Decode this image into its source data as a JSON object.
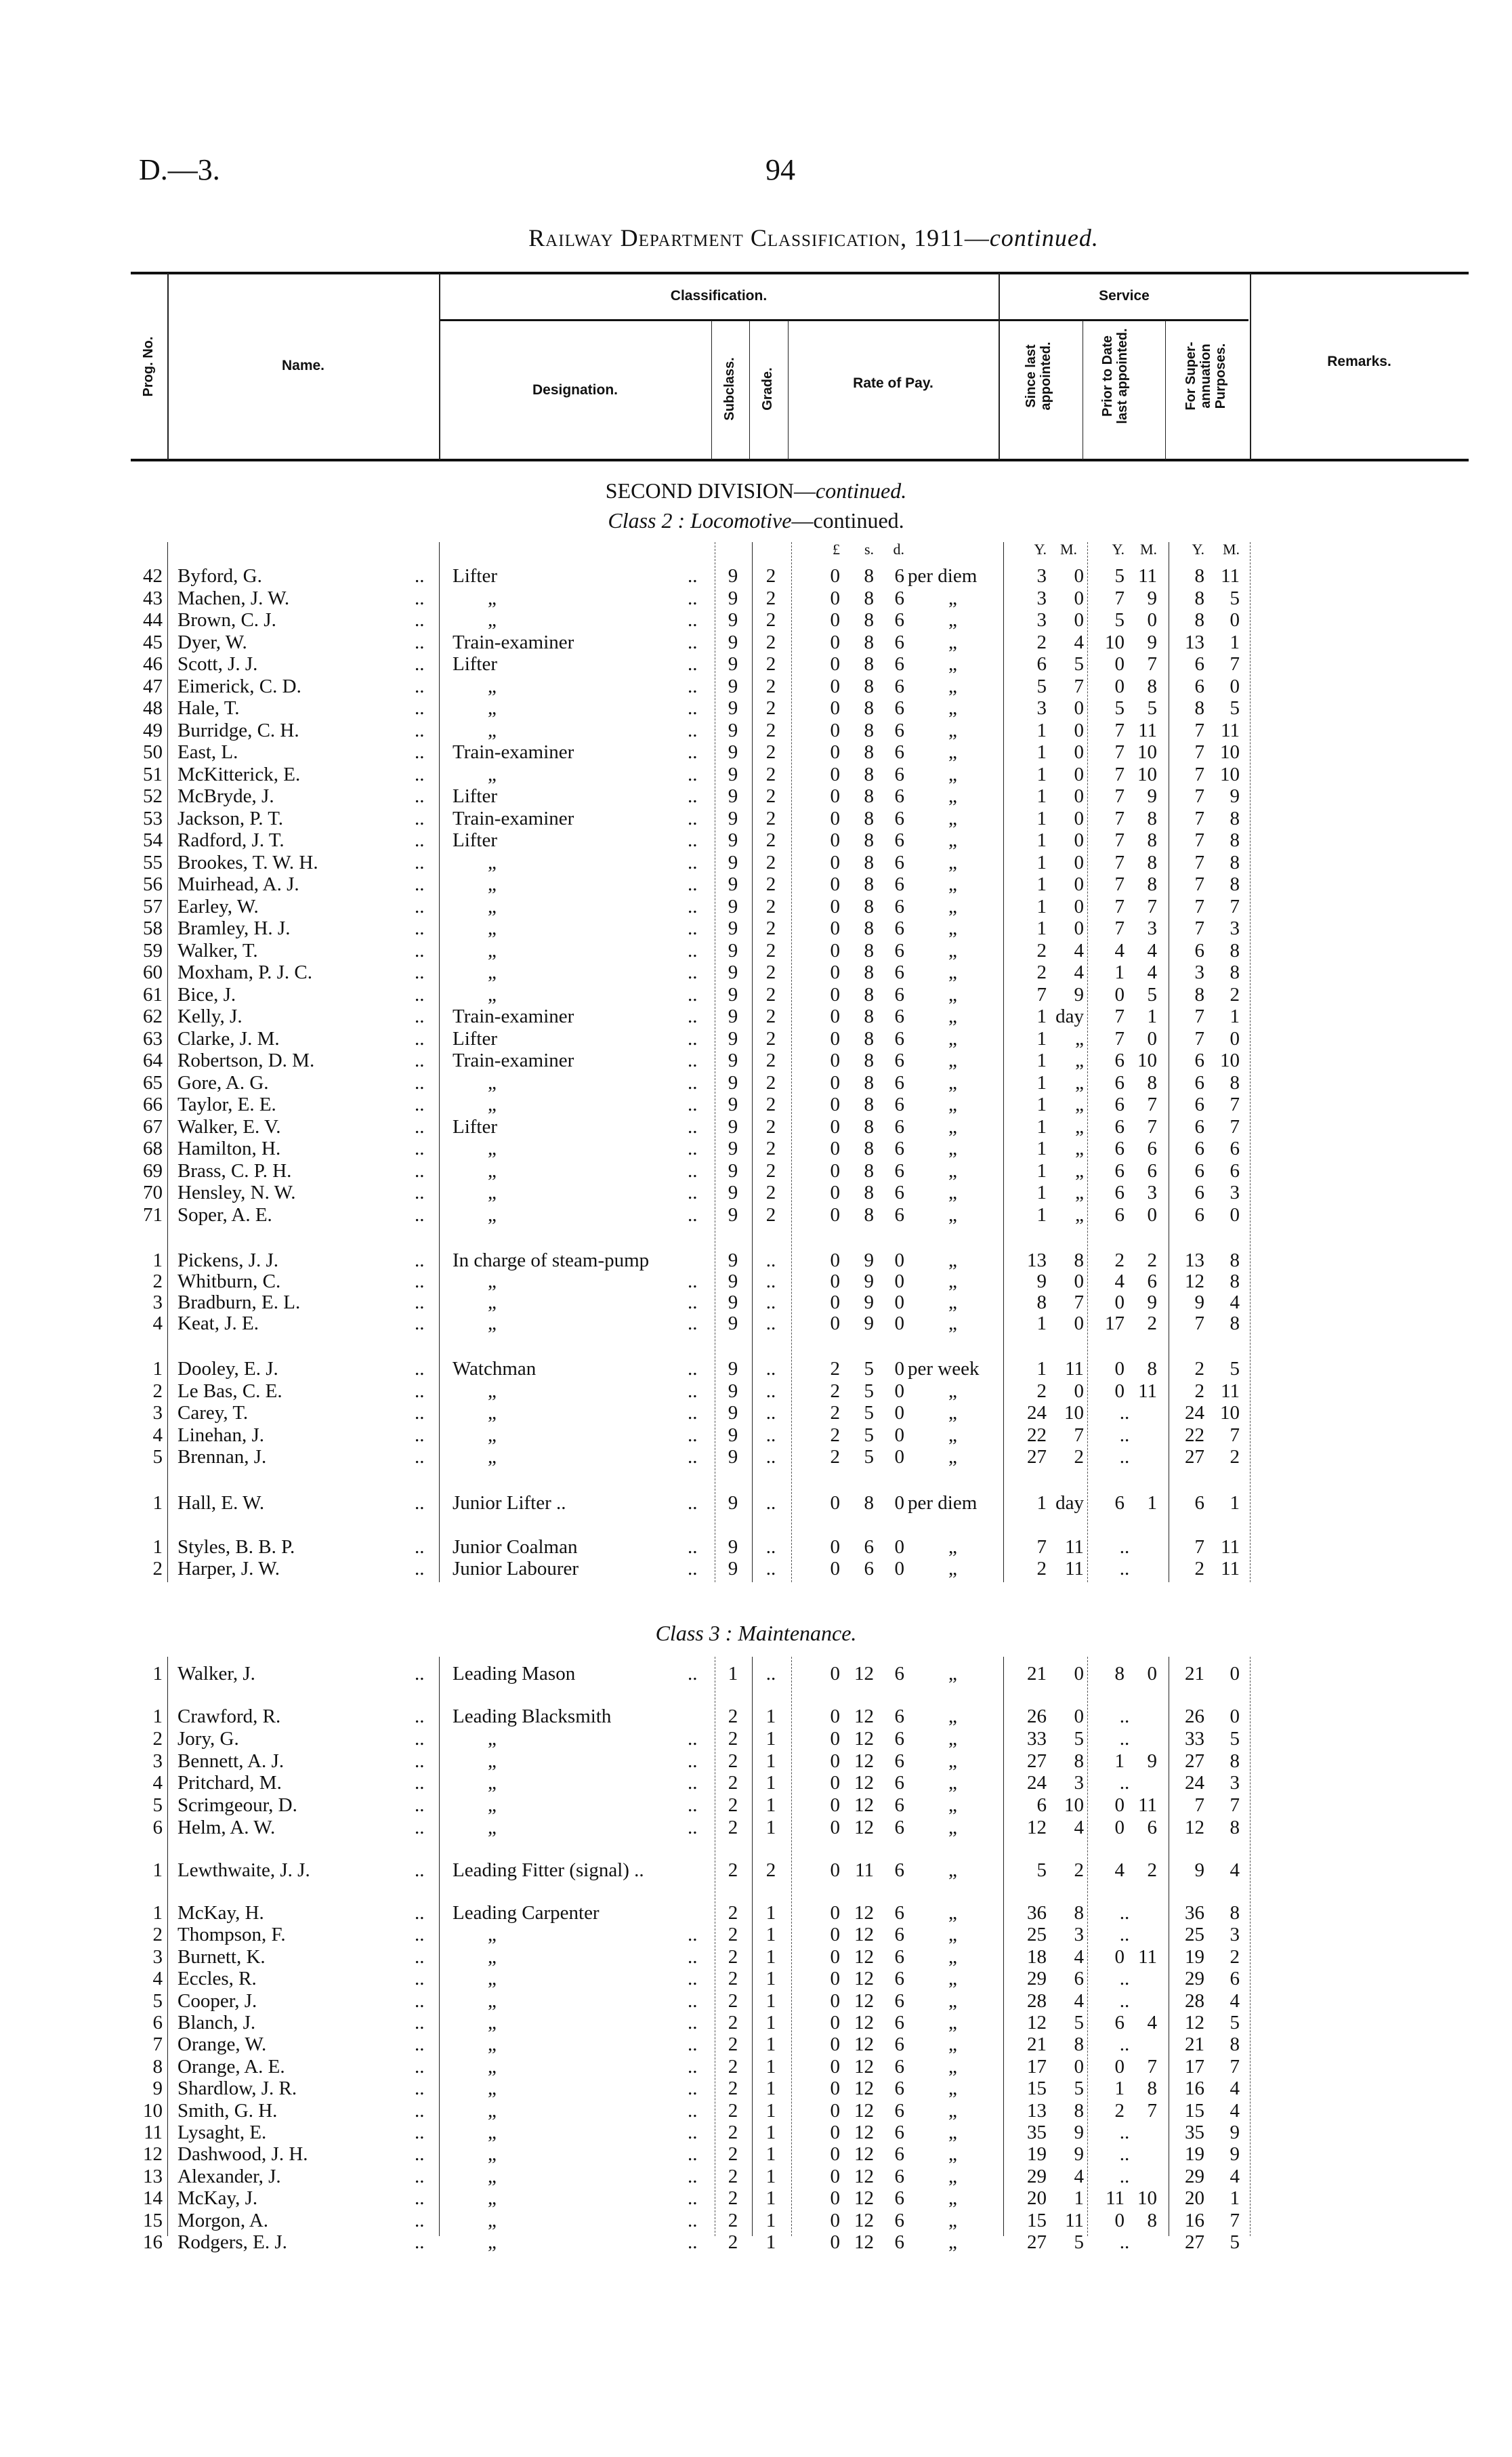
{
  "page": {
    "ref": "D.—3.",
    "number": "94",
    "title": "Railway Department Classification, 1911—",
    "title_italic": "continued."
  },
  "header": {
    "prog_no": "Prog. No.",
    "name": "Name.",
    "classification": "Classification.",
    "service": "Service",
    "designation": "Designation.",
    "subclass": "Subclass.",
    "grade": "Grade.",
    "rate_of_pay": "Rate of Pay.",
    "since_last": "Since last appointed.",
    "prior_to_date": "Prior to Date last appointed.",
    "for_super": "For Super-annuation Purposes.",
    "remarks": "Remarks."
  },
  "division": {
    "title": "SECOND DIVISION—",
    "title_italic": "continued."
  },
  "class2": {
    "label": "Class 2 :",
    "name": "Locomotive",
    "suffix": "—continued."
  },
  "class3": {
    "label": "Class 3 :",
    "name": "Maintenance."
  },
  "units": {
    "pounds": "£",
    "shillings": "s.",
    "pence": "d.",
    "years": "Y.",
    "months": "M."
  },
  "leader": "..",
  "groups": [
    {
      "rows": [
        [
          "42",
          "Byford, G.",
          "Lifter",
          "9",
          "2",
          "0",
          "8",
          "6",
          "per diem",
          "3",
          "0",
          "5",
          "11",
          "8",
          "11"
        ],
        [
          "43",
          "Machen, J. W.",
          "„",
          "9",
          "2",
          "0",
          "8",
          "6",
          "„",
          "3",
          "0",
          "7",
          "9",
          "8",
          "5"
        ],
        [
          "44",
          "Brown, C. J.",
          "„",
          "9",
          "2",
          "0",
          "8",
          "6",
          "„",
          "3",
          "0",
          "5",
          "0",
          "8",
          "0"
        ],
        [
          "45",
          "Dyer, W.",
          "Train-examiner",
          "9",
          "2",
          "0",
          "8",
          "6",
          "„",
          "2",
          "4",
          "10",
          "9",
          "13",
          "1"
        ],
        [
          "46",
          "Scott, J. J.",
          "Lifter",
          "9",
          "2",
          "0",
          "8",
          "6",
          "„",
          "6",
          "5",
          "0",
          "7",
          "6",
          "7"
        ],
        [
          "47",
          "Eimerick, C. D.",
          "„",
          "9",
          "2",
          "0",
          "8",
          "6",
          "„",
          "5",
          "7",
          "0",
          "8",
          "6",
          "0"
        ],
        [
          "48",
          "Hale, T.",
          "„",
          "9",
          "2",
          "0",
          "8",
          "6",
          "„",
          "3",
          "0",
          "5",
          "5",
          "8",
          "5"
        ],
        [
          "49",
          "Burridge, C. H.",
          "„",
          "9",
          "2",
          "0",
          "8",
          "6",
          "„",
          "1",
          "0",
          "7",
          "11",
          "7",
          "11"
        ],
        [
          "50",
          "East, L.",
          "Train-examiner",
          "9",
          "2",
          "0",
          "8",
          "6",
          "„",
          "1",
          "0",
          "7",
          "10",
          "7",
          "10"
        ],
        [
          "51",
          "McKitterick, E.",
          "„",
          "9",
          "2",
          "0",
          "8",
          "6",
          "„",
          "1",
          "0",
          "7",
          "10",
          "7",
          "10"
        ],
        [
          "52",
          "McBryde, J.",
          "Lifter",
          "9",
          "2",
          "0",
          "8",
          "6",
          "„",
          "1",
          "0",
          "7",
          "9",
          "7",
          "9"
        ],
        [
          "53",
          "Jackson, P. T.",
          "Train-examiner",
          "9",
          "2",
          "0",
          "8",
          "6",
          "„",
          "1",
          "0",
          "7",
          "8",
          "7",
          "8"
        ],
        [
          "54",
          "Radford, J. T.",
          "Lifter",
          "9",
          "2",
          "0",
          "8",
          "6",
          "„",
          "1",
          "0",
          "7",
          "8",
          "7",
          "8"
        ],
        [
          "55",
          "Brookes, T. W. H.",
          "„",
          "9",
          "2",
          "0",
          "8",
          "6",
          "„",
          "1",
          "0",
          "7",
          "8",
          "7",
          "8"
        ],
        [
          "56",
          "Muirhead, A. J.",
          "„",
          "9",
          "2",
          "0",
          "8",
          "6",
          "„",
          "1",
          "0",
          "7",
          "8",
          "7",
          "8"
        ],
        [
          "57",
          "Earley, W.",
          "„",
          "9",
          "2",
          "0",
          "8",
          "6",
          "„",
          "1",
          "0",
          "7",
          "7",
          "7",
          "7"
        ],
        [
          "58",
          "Bramley, H. J.",
          "„",
          "9",
          "2",
          "0",
          "8",
          "6",
          "„",
          "1",
          "0",
          "7",
          "3",
          "7",
          "3"
        ],
        [
          "59",
          "Walker, T.",
          "„",
          "9",
          "2",
          "0",
          "8",
          "6",
          "„",
          "2",
          "4",
          "4",
          "4",
          "6",
          "8"
        ],
        [
          "60",
          "Moxham, P. J. C.",
          "„",
          "9",
          "2",
          "0",
          "8",
          "6",
          "„",
          "2",
          "4",
          "1",
          "4",
          "3",
          "8"
        ],
        [
          "61",
          "Bice, J.",
          "„",
          "9",
          "2",
          "0",
          "8",
          "6",
          "„",
          "7",
          "9",
          "0",
          "5",
          "8",
          "2"
        ],
        [
          "62",
          "Kelly, J.",
          "Train-examiner",
          "9",
          "2",
          "0",
          "8",
          "6",
          "„",
          "1",
          "day",
          "7",
          "1",
          "7",
          "1"
        ],
        [
          "63",
          "Clarke, J. M.",
          "Lifter",
          "9",
          "2",
          "0",
          "8",
          "6",
          "„",
          "1",
          "„",
          "7",
          "0",
          "7",
          "0"
        ],
        [
          "64",
          "Robertson, D. M.",
          "Train-examiner",
          "9",
          "2",
          "0",
          "8",
          "6",
          "„",
          "1",
          "„",
          "6",
          "10",
          "6",
          "10"
        ],
        [
          "65",
          "Gore, A. G.",
          "„",
          "9",
          "2",
          "0",
          "8",
          "6",
          "„",
          "1",
          "„",
          "6",
          "8",
          "6",
          "8"
        ],
        [
          "66",
          "Taylor, E. E.",
          "„",
          "9",
          "2",
          "0",
          "8",
          "6",
          "„",
          "1",
          "„",
          "6",
          "7",
          "6",
          "7"
        ],
        [
          "67",
          "Walker, E. V.",
          "Lifter",
          "9",
          "2",
          "0",
          "8",
          "6",
          "„",
          "1",
          "„",
          "6",
          "7",
          "6",
          "7"
        ],
        [
          "68",
          "Hamilton, H.",
          "„",
          "9",
          "2",
          "0",
          "8",
          "6",
          "„",
          "1",
          "„",
          "6",
          "6",
          "6",
          "6"
        ],
        [
          "69",
          "Brass, C. P. H.",
          "„",
          "9",
          "2",
          "0",
          "8",
          "6",
          "„",
          "1",
          "„",
          "6",
          "6",
          "6",
          "6"
        ],
        [
          "70",
          "Hensley, N. W.",
          "„",
          "9",
          "2",
          "0",
          "8",
          "6",
          "„",
          "1",
          "„",
          "6",
          "3",
          "6",
          "3"
        ],
        [
          "71",
          "Soper, A. E.",
          "„",
          "9",
          "2",
          "0",
          "8",
          "6",
          "„",
          "1",
          "„",
          "6",
          "0",
          "6",
          "0"
        ]
      ]
    },
    {
      "rows": [
        [
          "1",
          "Pickens, J. J.",
          "In charge of steam-pump",
          "9",
          "..",
          "0",
          "9",
          "0",
          "„",
          "13",
          "8",
          "2",
          "2",
          "13",
          "8"
        ],
        [
          "2",
          "Whitburn, C.",
          "„",
          "9",
          "..",
          "0",
          "9",
          "0",
          "„",
          "9",
          "0",
          "4",
          "6",
          "12",
          "8"
        ],
        [
          "3",
          "Bradburn, E. L.",
          "„",
          "9",
          "..",
          "0",
          "9",
          "0",
          "„",
          "8",
          "7",
          "0",
          "9",
          "9",
          "4"
        ],
        [
          "4",
          "Keat, J. E.",
          "„",
          "9",
          "..",
          "0",
          "9",
          "0",
          "„",
          "1",
          "0",
          "17",
          "2",
          "7",
          "8"
        ]
      ]
    },
    {
      "rows": [
        [
          "1",
          "Dooley, E. J.",
          "Watchman",
          "9",
          "..",
          "2",
          "5",
          "0",
          "per week",
          "1",
          "11",
          "0",
          "8",
          "2",
          "5"
        ],
        [
          "2",
          "Le Bas, C. E.",
          "„",
          "9",
          "..",
          "2",
          "5",
          "0",
          "„",
          "2",
          "0",
          "0",
          "11",
          "2",
          "11"
        ],
        [
          "3",
          "Carey, T.",
          "„",
          "9",
          "..",
          "2",
          "5",
          "0",
          "„",
          "24",
          "10",
          "..",
          "",
          "24",
          "10"
        ],
        [
          "4",
          "Linehan, J.",
          "„",
          "9",
          "..",
          "2",
          "5",
          "0",
          "„",
          "22",
          "7",
          "..",
          "",
          "22",
          "7"
        ],
        [
          "5",
          "Brennan, J.",
          "„",
          "9",
          "..",
          "2",
          "5",
          "0",
          "„",
          "27",
          "2",
          "..",
          "",
          "27",
          "2"
        ]
      ]
    },
    {
      "rows": [
        [
          "1",
          "Hall, E. W.",
          "Junior Lifter ..",
          "9",
          "..",
          "0",
          "8",
          "0",
          "per diem",
          "1",
          "day",
          "6",
          "1",
          "6",
          "1"
        ]
      ]
    },
    {
      "rows": [
        [
          "1",
          "Styles, B. B. P.",
          "Junior Coalman",
          "9",
          "..",
          "0",
          "6",
          "0",
          "„",
          "7",
          "11",
          "..",
          "",
          "7",
          "11"
        ],
        [
          "2",
          "Harper, J. W.",
          "Junior Labourer",
          "9",
          "..",
          "0",
          "6",
          "0",
          "„",
          "2",
          "11",
          "..",
          "",
          "2",
          "11"
        ]
      ]
    },
    {
      "rows": [
        [
          "1",
          "Walker, J.",
          "Leading Mason",
          "1",
          "..",
          "0",
          "12",
          "6",
          "„",
          "21",
          "0",
          "8",
          "0",
          "21",
          "0"
        ]
      ]
    },
    {
      "rows": [
        [
          "1",
          "Crawford, R.",
          "Leading Blacksmith",
          "2",
          "1",
          "0",
          "12",
          "6",
          "„",
          "26",
          "0",
          "..",
          "",
          "26",
          "0"
        ],
        [
          "2",
          "Jory, G.",
          "„",
          "2",
          "1",
          "0",
          "12",
          "6",
          "„",
          "33",
          "5",
          "..",
          "",
          "33",
          "5"
        ],
        [
          "3",
          "Bennett, A. J.",
          "„",
          "2",
          "1",
          "0",
          "12",
          "6",
          "„",
          "27",
          "8",
          "1",
          "9",
          "27",
          "8"
        ],
        [
          "4",
          "Pritchard, M.",
          "„",
          "2",
          "1",
          "0",
          "12",
          "6",
          "„",
          "24",
          "3",
          "..",
          "",
          "24",
          "3"
        ],
        [
          "5",
          "Scrimgeour, D.",
          "„",
          "2",
          "1",
          "0",
          "12",
          "6",
          "„",
          "6",
          "10",
          "0",
          "11",
          "7",
          "7"
        ],
        [
          "6",
          "Helm, A. W.",
          "„",
          "2",
          "1",
          "0",
          "12",
          "6",
          "„",
          "12",
          "4",
          "0",
          "6",
          "12",
          "8"
        ]
      ]
    },
    {
      "rows": [
        [
          "1",
          "Lewthwaite, J. J.",
          "Leading Fitter (signal) ..",
          "2",
          "2",
          "0",
          "11",
          "6",
          "„",
          "5",
          "2",
          "4",
          "2",
          "9",
          "4"
        ]
      ]
    },
    {
      "rows": [
        [
          "1",
          "McKay, H.",
          "Leading Carpenter",
          "2",
          "1",
          "0",
          "12",
          "6",
          "„",
          "36",
          "8",
          "..",
          "",
          "36",
          "8"
        ],
        [
          "2",
          "Thompson, F.",
          "„",
          "2",
          "1",
          "0",
          "12",
          "6",
          "„",
          "25",
          "3",
          "..",
          "",
          "25",
          "3"
        ],
        [
          "3",
          "Burnett, K.",
          "„",
          "2",
          "1",
          "0",
          "12",
          "6",
          "„",
          "18",
          "4",
          "0",
          "11",
          "19",
          "2"
        ],
        [
          "4",
          "Eccles, R.",
          "„",
          "2",
          "1",
          "0",
          "12",
          "6",
          "„",
          "29",
          "6",
          "..",
          "",
          "29",
          "6"
        ],
        [
          "5",
          "Cooper, J.",
          "„",
          "2",
          "1",
          "0",
          "12",
          "6",
          "„",
          "28",
          "4",
          "..",
          "",
          "28",
          "4"
        ],
        [
          "6",
          "Blanch, J.",
          "„",
          "2",
          "1",
          "0",
          "12",
          "6",
          "„",
          "12",
          "5",
          "6",
          "4",
          "12",
          "5"
        ],
        [
          "7",
          "Orange, W.",
          "„",
          "2",
          "1",
          "0",
          "12",
          "6",
          "„",
          "21",
          "8",
          "..",
          "",
          "21",
          "8"
        ],
        [
          "8",
          "Orange, A. E.",
          "„",
          "2",
          "1",
          "0",
          "12",
          "6",
          "„",
          "17",
          "0",
          "0",
          "7",
          "17",
          "7"
        ],
        [
          "9",
          "Shardlow, J. R.",
          "„",
          "2",
          "1",
          "0",
          "12",
          "6",
          "„",
          "15",
          "5",
          "1",
          "8",
          "16",
          "4"
        ],
        [
          "10",
          "Smith, G. H.",
          "„",
          "2",
          "1",
          "0",
          "12",
          "6",
          "„",
          "13",
          "8",
          "2",
          "7",
          "15",
          "4"
        ],
        [
          "11",
          "Lysaght, E.",
          "„",
          "2",
          "1",
          "0",
          "12",
          "6",
          "„",
          "35",
          "9",
          "..",
          "",
          "35",
          "9"
        ],
        [
          "12",
          "Dashwood, J. H.",
          "„",
          "2",
          "1",
          "0",
          "12",
          "6",
          "„",
          "19",
          "9",
          "..",
          "",
          "19",
          "9"
        ],
        [
          "13",
          "Alexander, J.",
          "„",
          "2",
          "1",
          "0",
          "12",
          "6",
          "„",
          "29",
          "4",
          "..",
          "",
          "29",
          "4"
        ],
        [
          "14",
          "McKay, J.",
          "„",
          "2",
          "1",
          "0",
          "12",
          "6",
          "„",
          "20",
          "1",
          "11",
          "10",
          "20",
          "1"
        ],
        [
          "15",
          "Morgon, A.",
          "„",
          "2",
          "1",
          "0",
          "12",
          "6",
          "„",
          "15",
          "11",
          "0",
          "8",
          "16",
          "7"
        ],
        [
          "16",
          "Rodgers, E. J.",
          "„",
          "2",
          "1",
          "0",
          "12",
          "6",
          "„",
          "27",
          "5",
          "..",
          "",
          "27",
          "5"
        ]
      ]
    }
  ]
}
